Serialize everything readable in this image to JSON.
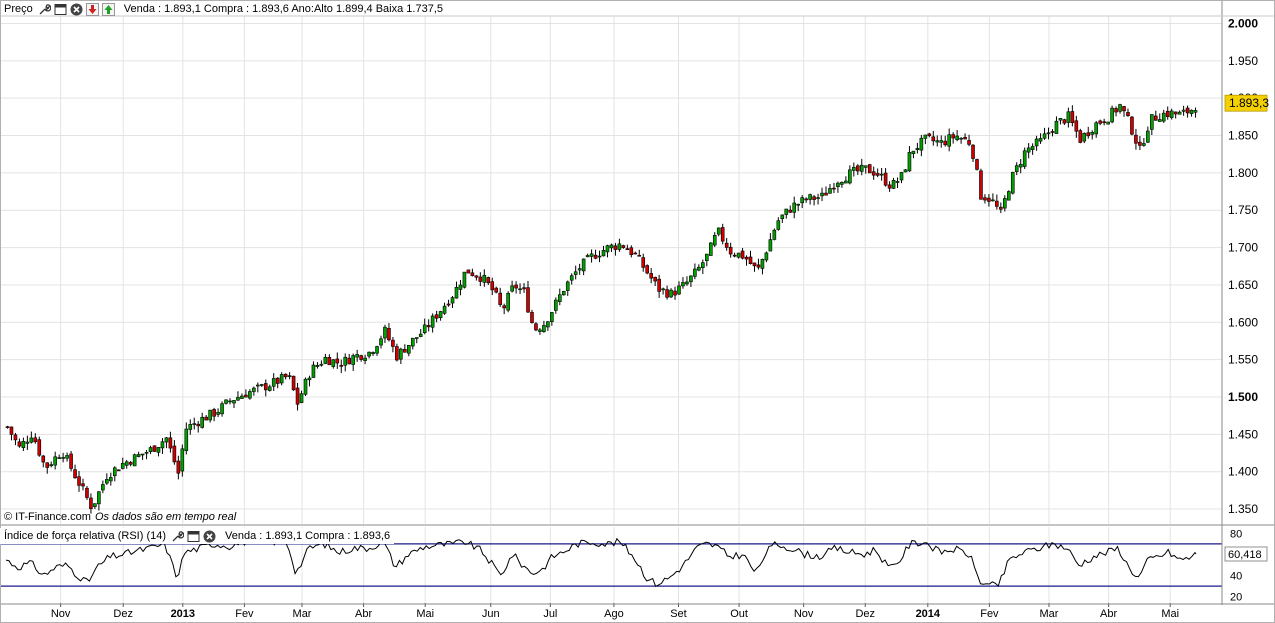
{
  "price_toolbar": {
    "label": "Preço",
    "info": "Venda : 1.893,1 Compra : 1.893,6 Ano:Alto 1.899,4 Baixa 1.737,5",
    "icons": [
      "wrench-icon",
      "window-icon",
      "close-icon",
      "arrow-down-red-icon",
      "arrow-up-green-icon"
    ]
  },
  "rsi_toolbar": {
    "label": "Índice de força relativa (RSI) (14)",
    "info": "Venda : 1.893,1 Compra : 1.893,6",
    "icons": [
      "wrench-icon",
      "window-icon",
      "close-icon"
    ]
  },
  "copyright": {
    "source": "© IT-Finance.com",
    "note": "Os dados são em tempo real"
  },
  "colors": {
    "grid": "#e3e3e3",
    "candle_up": "#00a000",
    "candle_down": "#d00000",
    "candle_outline": "#000000",
    "rsi_bands": "#1a1a8c",
    "last_price_bg": "#f5d000"
  },
  "chart_data": [
    {
      "type": "candlestick",
      "yticks": [
        "2.000",
        "1.950",
        "1.900",
        "1.850",
        "1.800",
        "1.750",
        "1.700",
        "1.650",
        "1.600",
        "1.550",
        "1.500",
        "1.450",
        "1.400",
        "1.350"
      ],
      "ylim": [
        1330,
        2010
      ],
      "last_value_label": "1.893,3",
      "last_value": 1893.3,
      "x_month_labels": [
        "Nov",
        "Dez",
        "2013",
        "Fev",
        "Mar",
        "Abr",
        "Mai",
        "Jun",
        "Jul",
        "Ago",
        "Set",
        "Out",
        "Nov",
        "Dez",
        "2014",
        "Fev",
        "Mar",
        "Abr",
        "Mai"
      ],
      "series": [
        {
          "points": [
            [
              0,
              1460
            ],
            [
              12,
              1432
            ],
            [
              25,
              1452
            ],
            [
              38,
              1405
            ],
            [
              55,
              1428
            ],
            [
              70,
              1390
            ],
            [
              85,
              1352
            ],
            [
              100,
              1395
            ],
            [
              115,
              1410
            ],
            [
              130,
              1420
            ],
            [
              145,
              1430
            ],
            [
              160,
              1445
            ],
            [
              172,
              1398
            ],
            [
              176,
              1430
            ],
            [
              180,
              1458
            ],
            [
              195,
              1470
            ],
            [
              210,
              1480
            ],
            [
              225,
              1496
            ],
            [
              240,
              1505
            ],
            [
              255,
              1512
            ],
            [
              270,
              1520
            ],
            [
              283,
              1528
            ],
            [
              292,
              1492
            ],
            [
              305,
              1535
            ],
            [
              320,
              1552
            ],
            [
              335,
              1545
            ],
            [
              350,
              1555
            ],
            [
              365,
              1560
            ],
            [
              380,
              1588
            ],
            [
              392,
              1555
            ],
            [
              405,
              1572
            ],
            [
              420,
              1590
            ],
            [
              435,
              1615
            ],
            [
              450,
              1640
            ],
            [
              462,
              1670
            ],
            [
              478,
              1660
            ],
            [
              490,
              1640
            ],
            [
              498,
              1615
            ],
            [
              510,
              1650
            ],
            [
              520,
              1640
            ],
            [
              530,
              1590
            ],
            [
              540,
              1598
            ],
            [
              550,
              1620
            ],
            [
              560,
              1645
            ],
            [
              575,
              1672
            ],
            [
              590,
              1690
            ],
            [
              605,
              1700
            ],
            [
              618,
              1705
            ],
            [
              632,
              1690
            ],
            [
              645,
              1665
            ],
            [
              655,
              1645
            ],
            [
              668,
              1638
            ],
            [
              682,
              1650
            ],
            [
              695,
              1670
            ],
            [
              705,
              1690
            ],
            [
              715,
              1722
            ],
            [
              728,
              1695
            ],
            [
              742,
              1688
            ],
            [
              755,
              1668
            ],
            [
              765,
              1700
            ],
            [
              775,
              1735
            ],
            [
              790,
              1755
            ],
            [
              805,
              1765
            ],
            [
              820,
              1768
            ],
            [
              835,
              1790
            ],
            [
              850,
              1800
            ],
            [
              865,
              1805
            ],
            [
              875,
              1800
            ],
            [
              890,
              1782
            ],
            [
              900,
              1795
            ],
            [
              910,
              1830
            ],
            [
              925,
              1845
            ],
            [
              940,
              1840
            ],
            [
              955,
              1850
            ],
            [
              970,
              1840
            ],
            [
              980,
              1770
            ],
            [
              990,
              1765
            ],
            [
              1000,
              1745
            ],
            [
              1010,
              1790
            ],
            [
              1025,
              1830
            ],
            [
              1040,
              1842
            ],
            [
              1055,
              1865
            ],
            [
              1068,
              1875
            ],
            [
              1080,
              1845
            ],
            [
              1095,
              1865
            ],
            [
              1108,
              1875
            ],
            [
              1120,
              1890
            ],
            [
              1130,
              1865
            ],
            [
              1140,
              1830
            ],
            [
              1150,
              1870
            ],
            [
              1160,
              1878
            ],
            [
              1170,
              1880
            ],
            [
              1182,
              1878
            ],
            [
              1192,
              1885
            ],
            [
              1198,
              1893
            ]
          ]
        }
      ]
    },
    {
      "type": "line",
      "title": "Índice de força relativa (RSI) (14)",
      "yticks": [
        "80",
        "60",
        "40",
        "20"
      ],
      "ylim": [
        14,
        86
      ],
      "bands": [
        70,
        30
      ],
      "last_value_label": "60,418",
      "last_value": 60.418,
      "series": [
        {
          "points": [
            [
              0,
              55
            ],
            [
              12,
              48
            ],
            [
              25,
              52
            ],
            [
              38,
              40
            ],
            [
              50,
              48
            ],
            [
              62,
              50
            ],
            [
              70,
              42
            ],
            [
              82,
              33
            ],
            [
              92,
              48
            ],
            [
              105,
              58
            ],
            [
              118,
              60
            ],
            [
              130,
              63
            ],
            [
              145,
              66
            ],
            [
              160,
              70
            ],
            [
              172,
              38
            ],
            [
              180,
              62
            ],
            [
              195,
              66
            ],
            [
              210,
              70
            ],
            [
              225,
              68
            ],
            [
              240,
              72
            ],
            [
              255,
              73
            ],
            [
              270,
              72
            ],
            [
              283,
              72
            ],
            [
              292,
              42
            ],
            [
              305,
              66
            ],
            [
              320,
              70
            ],
            [
              335,
              62
            ],
            [
              350,
              66
            ],
            [
              365,
              66
            ],
            [
              380,
              72
            ],
            [
              392,
              48
            ],
            [
              405,
              60
            ],
            [
              420,
              67
            ],
            [
              435,
              69
            ],
            [
              450,
              70
            ],
            [
              462,
              72
            ],
            [
              478,
              64
            ],
            [
              490,
              50
            ],
            [
              498,
              40
            ],
            [
              510,
              60
            ],
            [
              520,
              50
            ],
            [
              530,
              42
            ],
            [
              540,
              46
            ],
            [
              550,
              58
            ],
            [
              560,
              62
            ],
            [
              575,
              70
            ],
            [
              590,
              72
            ],
            [
              605,
              70
            ],
            [
              618,
              72
            ],
            [
              632,
              58
            ],
            [
              645,
              38
            ],
            [
              655,
              32
            ],
            [
              668,
              38
            ],
            [
              682,
              50
            ],
            [
              695,
              66
            ],
            [
              705,
              70
            ],
            [
              715,
              68
            ],
            [
              728,
              58
            ],
            [
              742,
              60
            ],
            [
              755,
              42
            ],
            [
              765,
              62
            ],
            [
              775,
              70
            ],
            [
              790,
              66
            ],
            [
              805,
              60
            ],
            [
              820,
              58
            ],
            [
              835,
              66
            ],
            [
              850,
              62
            ],
            [
              865,
              60
            ],
            [
              875,
              65
            ],
            [
              890,
              46
            ],
            [
              900,
              55
            ],
            [
              910,
              70
            ],
            [
              925,
              72
            ],
            [
              940,
              62
            ],
            [
              955,
              65
            ],
            [
              970,
              60
            ],
            [
              980,
              35
            ],
            [
              990,
              30
            ],
            [
              1000,
              32
            ],
            [
              1010,
              55
            ],
            [
              1025,
              62
            ],
            [
              1040,
              66
            ],
            [
              1055,
              70
            ],
            [
              1068,
              66
            ],
            [
              1080,
              50
            ],
            [
              1095,
              58
            ],
            [
              1108,
              62
            ],
            [
              1120,
              66
            ],
            [
              1130,
              48
            ],
            [
              1140,
              38
            ],
            [
              1150,
              55
            ],
            [
              1160,
              58
            ],
            [
              1170,
              62
            ],
            [
              1182,
              55
            ],
            [
              1192,
              57
            ],
            [
              1198,
              60.418
            ]
          ]
        }
      ]
    }
  ]
}
